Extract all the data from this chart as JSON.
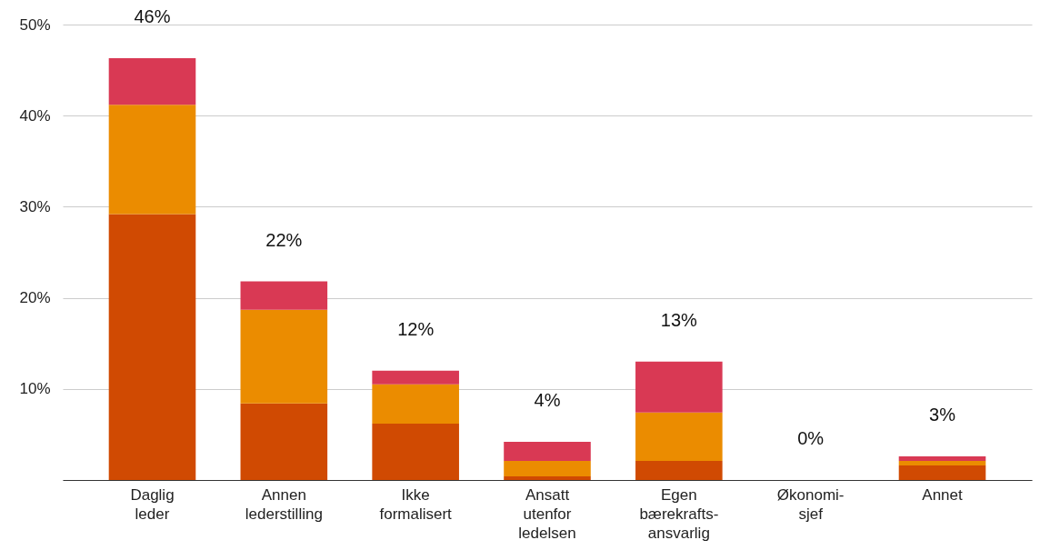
{
  "chart_data": {
    "type": "bar",
    "stacked": true,
    "categories": [
      "Daglig leder",
      "Annen lederstilling",
      "Ikke formalisert",
      "Ansatt utenfor ledelsen",
      "Egen bærekrafts-ansvarlig",
      "Økonomi-sjef",
      "Annet"
    ],
    "series": [
      {
        "color": "#d04a02",
        "values": [
          29.2,
          8.4,
          6.2,
          0.4,
          2.1,
          0,
          1.6
        ]
      },
      {
        "color": "#eb8c00",
        "values": [
          12.0,
          10.3,
          4.3,
          1.7,
          5.3,
          0,
          0.5
        ]
      },
      {
        "color": "#d93954",
        "values": [
          5.1,
          3.1,
          1.5,
          2.1,
          5.6,
          0,
          0.5
        ]
      }
    ],
    "totals": [
      "46%",
      "22%",
      "12%",
      "4%",
      "13%",
      "0%",
      "3%"
    ],
    "ylim": [
      0,
      50
    ],
    "yticks": [
      {
        "value": 0,
        "label": null
      },
      {
        "value": 10,
        "label": "10%"
      },
      {
        "value": 20,
        "label": "20%"
      },
      {
        "value": 30,
        "label": "30%"
      },
      {
        "value": 40,
        "label": "40%"
      },
      {
        "value": 50,
        "label": "50%"
      }
    ],
    "grid": "y"
  }
}
